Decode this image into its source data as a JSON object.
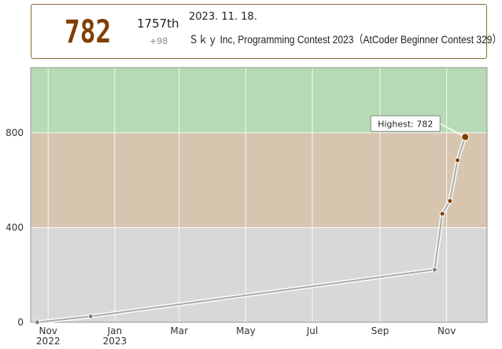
{
  "header": {
    "rating": "782",
    "rank": "1757th",
    "delta": "+98",
    "date": "2023. 11. 18.",
    "contest": "Ｓｋｙ Inc, Programming Contest 2023（AtCoder Beginner Contest 329）"
  },
  "chart_data": {
    "type": "line",
    "x_axis_type": "date",
    "xlim": [
      "2022-10-16",
      "2023-12-08"
    ],
    "ylim": [
      0,
      1075
    ],
    "bands": [
      {
        "from": 0,
        "to": 400,
        "color": "#d8d8d8"
      },
      {
        "from": 400,
        "to": 800,
        "color": "#d8c5b0"
      },
      {
        "from": 800,
        "to": 1075,
        "color": "#b6dab3"
      }
    ],
    "y_ticks": [
      "0",
      "400",
      "800"
    ],
    "x_ticks": [
      {
        "date": "2022-11-01",
        "label": "Nov",
        "sub": "2022"
      },
      {
        "date": "2023-01-01",
        "label": "Jan",
        "sub": "2023"
      },
      {
        "date": "2023-03-01",
        "label": "Mar",
        "sub": ""
      },
      {
        "date": "2023-05-01",
        "label": "May",
        "sub": ""
      },
      {
        "date": "2023-07-01",
        "label": "Jul",
        "sub": ""
      },
      {
        "date": "2023-09-01",
        "label": "Sep",
        "sub": ""
      },
      {
        "date": "2023-11-01",
        "label": "Nov",
        "sub": ""
      }
    ],
    "series": [
      {
        "points": [
          {
            "x": "2022-10-22",
            "y": 0
          },
          {
            "x": "2022-12-10",
            "y": 25
          },
          {
            "x": "2023-10-21",
            "y": 222
          },
          {
            "x": "2023-10-28",
            "y": 458
          },
          {
            "x": "2023-11-04",
            "y": 512
          },
          {
            "x": "2023-11-11",
            "y": 684
          },
          {
            "x": "2023-11-18",
            "y": 782
          }
        ]
      }
    ],
    "annotation": {
      "text": "Highest: 782",
      "x": "2023-11-18",
      "y": 782
    },
    "colors": {
      "gray_point": "#808080",
      "brown_point": "#804000",
      "line": "#aaaaaa",
      "grid": "#ffffff"
    }
  }
}
